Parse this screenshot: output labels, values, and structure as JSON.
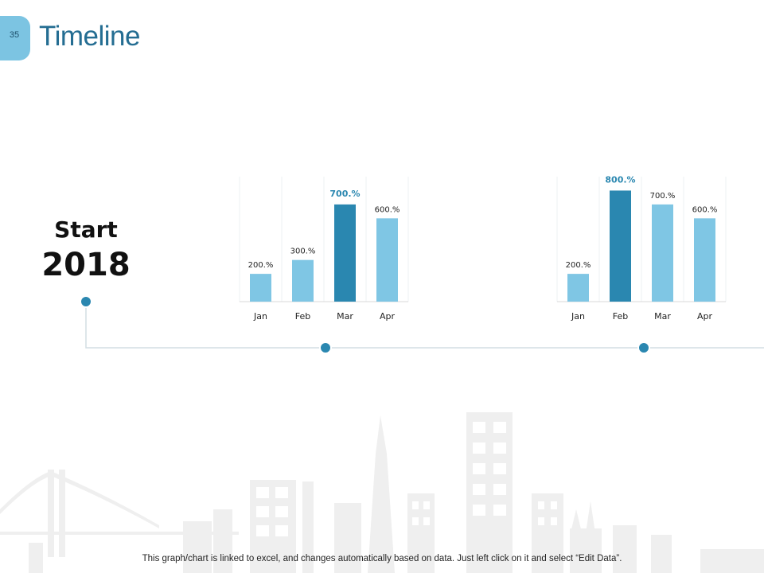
{
  "slide": {
    "number": "35",
    "title": "Timeline"
  },
  "timeline": {
    "start_label": "Start",
    "year": "2018"
  },
  "footer": {
    "caption": "This graph/chart is linked to excel, and changes automatically based on data. Just left click on it and select “Edit Data”."
  },
  "colors": {
    "accent": "#2a87b0",
    "light": "#7fc6e4",
    "title": "#246d92",
    "line": "#d3dde3"
  },
  "chart_data": [
    {
      "type": "bar",
      "categories": [
        "Jan",
        "Feb",
        "Mar",
        "Apr"
      ],
      "values": [
        200,
        300,
        700,
        600
      ],
      "labels": [
        "200.%",
        "300.%",
        "700.%",
        "600.%"
      ],
      "highlight_index": 2,
      "ylim": [
        0,
        900
      ],
      "title": "",
      "xlabel": "",
      "ylabel": ""
    },
    {
      "type": "bar",
      "categories": [
        "Jan",
        "Feb",
        "Mar",
        "Apr"
      ],
      "values": [
        200,
        800,
        700,
        600
      ],
      "labels": [
        "200.%",
        "800.%",
        "700.%",
        "600.%"
      ],
      "highlight_index": 1,
      "ylim": [
        0,
        900
      ],
      "title": "",
      "xlabel": "",
      "ylabel": ""
    }
  ]
}
